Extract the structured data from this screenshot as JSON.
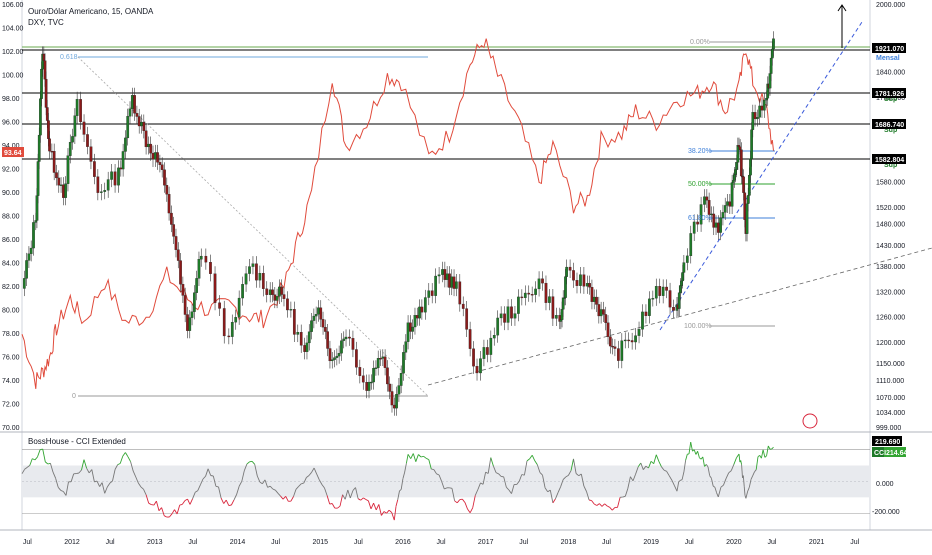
{
  "header": {
    "title": "Ouro/Dólar Americano, 15, OANDA",
    "subtitle": "DXY, TVC"
  },
  "colors": {
    "candle_up": "#26a69a",
    "candle_up_dark": "#1e7a28",
    "candle_down": "#8b1a1a",
    "dxy_line": "#e04b3c",
    "fib_blue": "#3d7fd9",
    "fib_green": "#2ca02c",
    "support": "#000000",
    "trend_dashed": "#3b5bdb",
    "cci_line": "#777777",
    "cci_green": "#33a532",
    "cci_red": "#d8263c",
    "cci_band": "#e8eaee"
  },
  "left_axis": {
    "ticks": [
      "106.00",
      "104.00",
      "102.00",
      "100.00",
      "98.00",
      "96.00",
      "94.00",
      "92.00",
      "90.00",
      "88.00",
      "86.00",
      "84.00",
      "82.00",
      "80.00",
      "78.00",
      "76.00",
      "74.00",
      "72.00",
      "70.00"
    ],
    "current_value": "93.64"
  },
  "right_axis": {
    "ticks": [
      "2000.000",
      "1840.000",
      "1780.000",
      "1720.000",
      "1640.000",
      "1580.000",
      "1520.000",
      "1480.000",
      "1430.000",
      "1380.000",
      "1320.000",
      "1260.000",
      "1200.000",
      "1150.000",
      "1110.000",
      "1070.000",
      "1034.000",
      "999.000"
    ]
  },
  "price_labels": [
    {
      "text": "1921.070",
      "kind": "current"
    },
    {
      "text": "1781.926",
      "kind": "support"
    },
    {
      "text": "1686.740",
      "kind": "support"
    },
    {
      "text": "1582.804",
      "kind": "support"
    }
  ],
  "level_labels": [
    "Mensal",
    "Sup",
    "Sup",
    "Sup"
  ],
  "fib_labels": [
    "0.00%",
    "38.20%",
    "50.00%",
    "61.80%",
    "100.00%",
    "0.618",
    "0"
  ],
  "time_axis": {
    "labels": [
      "Jul",
      "2012",
      "Jul",
      "2013",
      "Jul",
      "2014",
      "Jul",
      "2015",
      "Jul",
      "2016",
      "Jul",
      "2017",
      "Jul",
      "2018",
      "Jul",
      "2019",
      "Jul",
      "2020",
      "Jul",
      "2021",
      "Jul"
    ]
  },
  "cci": {
    "title": "BossHouse - CCI Extended",
    "ticks": [
      "219.690",
      "0.000",
      "-200.000"
    ],
    "label_value": "214.641",
    "label_name": "CCI"
  },
  "chart_data": [
    {
      "type": "candlestick",
      "title": "Ouro/Dólar Americano, 15, OANDA",
      "y_axis": "right",
      "ylim": [
        999,
        2000
      ],
      "x_range": [
        "2011-06",
        "2021-09"
      ],
      "series": [
        {
          "name": "XAUUSD",
          "points": [
            [
              "2011-06",
              1320
            ],
            [
              "2011-08",
              1500
            ],
            [
              "2011-09",
              1900
            ],
            [
              "2011-10",
              1650
            ],
            [
              "2011-12",
              1560
            ],
            [
              "2012-02",
              1760
            ],
            [
              "2012-05",
              1560
            ],
            [
              "2012-08",
              1600
            ],
            [
              "2012-10",
              1780
            ],
            [
              "2012-12",
              1680
            ],
            [
              "2013-02",
              1620
            ],
            [
              "2013-04",
              1460
            ],
            [
              "2013-06",
              1220
            ],
            [
              "2013-08",
              1420
            ],
            [
              "2013-12",
              1200
            ],
            [
              "2014-03",
              1390
            ],
            [
              "2014-06",
              1320
            ],
            [
              "2014-08",
              1310
            ],
            [
              "2014-11",
              1170
            ],
            [
              "2015-01",
              1300
            ],
            [
              "2015-03",
              1150
            ],
            [
              "2015-05",
              1230
            ],
            [
              "2015-08",
              1090
            ],
            [
              "2015-10",
              1180
            ],
            [
              "2015-12",
              1050
            ],
            [
              "2016-02",
              1240
            ],
            [
              "2016-04",
              1280
            ],
            [
              "2016-07",
              1370
            ],
            [
              "2016-09",
              1330
            ],
            [
              "2016-12",
              1130
            ],
            [
              "2017-03",
              1250
            ],
            [
              "2017-06",
              1290
            ],
            [
              "2017-09",
              1350
            ],
            [
              "2017-12",
              1240
            ],
            [
              "2018-01",
              1360
            ],
            [
              "2018-04",
              1340
            ],
            [
              "2018-06",
              1270
            ],
            [
              "2018-08",
              1170
            ],
            [
              "2018-11",
              1220
            ],
            [
              "2019-02",
              1330
            ],
            [
              "2019-05",
              1280
            ],
            [
              "2019-06",
              1400
            ],
            [
              "2019-09",
              1550
            ],
            [
              "2019-11",
              1460
            ],
            [
              "2020-01",
              1560
            ],
            [
              "2020-02",
              1680
            ],
            [
              "2020-03",
              1470
            ],
            [
              "2020-04",
              1740
            ],
            [
              "2020-06",
              1770
            ],
            [
              "2020-07",
              1920
            ]
          ]
        }
      ]
    },
    {
      "type": "line",
      "title": "DXY, TVC",
      "y_axis": "left",
      "ylim": [
        70,
        106
      ],
      "series": [
        {
          "name": "DXY",
          "points": [
            [
              "2011-06",
              78
            ],
            [
              "2011-08",
              74
            ],
            [
              "2011-09",
              74.8
            ],
            [
              "2011-10",
              76
            ],
            [
              "2011-11",
              78.5
            ],
            [
              "2012-01",
              81
            ],
            [
              "2012-03",
              79
            ],
            [
              "2012-06",
              82.5
            ],
            [
              "2012-09",
              79
            ],
            [
              "2012-12",
              79.5
            ],
            [
              "2013-03",
              83
            ],
            [
              "2013-06",
              81
            ],
            [
              "2013-09",
              80
            ],
            [
              "2013-12",
              80.5
            ],
            [
              "2014-03",
              79.5
            ],
            [
              "2014-05",
              79.3
            ],
            [
              "2014-08",
              82
            ],
            [
              "2014-10",
              86
            ],
            [
              "2014-12",
              90
            ],
            [
              "2015-03",
              100
            ],
            [
              "2015-05",
              94
            ],
            [
              "2015-08",
              96
            ],
            [
              "2015-11",
              100
            ],
            [
              "2016-01",
              99.5
            ],
            [
              "2016-05",
              93
            ],
            [
              "2016-08",
              95
            ],
            [
              "2016-11",
              101
            ],
            [
              "2017-01",
              103
            ],
            [
              "2017-03",
              100
            ],
            [
              "2017-06",
              96
            ],
            [
              "2017-09",
              91
            ],
            [
              "2017-11",
              94
            ],
            [
              "2018-02",
              89
            ],
            [
              "2018-04",
              89.5
            ],
            [
              "2018-06",
              94.5
            ],
            [
              "2018-09",
              95
            ],
            [
              "2018-11",
              97
            ],
            [
              "2019-02",
              96
            ],
            [
              "2019-05",
              98
            ],
            [
              "2019-08",
              98.5
            ],
            [
              "2019-10",
              99.5
            ],
            [
              "2019-12",
              97
            ],
            [
              "2020-02",
              99
            ],
            [
              "2020-03",
              102.5
            ],
            [
              "2020-04",
              99.5
            ],
            [
              "2020-06",
              97
            ],
            [
              "2020-07",
              93.6
            ]
          ]
        }
      ]
    },
    {
      "type": "line",
      "title": "BossHouse - CCI Extended",
      "ylim": [
        -280,
        260
      ],
      "series": [
        {
          "name": "CCI",
          "points": [
            [
              "2011-06",
              80
            ],
            [
              "2011-09",
              180
            ],
            [
              "2011-12",
              -90
            ],
            [
              "2012-03",
              120
            ],
            [
              "2012-06",
              -60
            ],
            [
              "2012-09",
              160
            ],
            [
              "2012-12",
              -100
            ],
            [
              "2013-03",
              -200
            ],
            [
              "2013-06",
              -140
            ],
            [
              "2013-09",
              90
            ],
            [
              "2013-12",
              -170
            ],
            [
              "2014-03",
              120
            ],
            [
              "2014-06",
              -60
            ],
            [
              "2014-09",
              -120
            ],
            [
              "2014-12",
              90
            ],
            [
              "2015-03",
              -160
            ],
            [
              "2015-06",
              -60
            ],
            [
              "2015-09",
              -150
            ],
            [
              "2015-12",
              -230
            ],
            [
              "2016-02",
              180
            ],
            [
              "2016-05",
              110
            ],
            [
              "2016-08",
              -60
            ],
            [
              "2016-11",
              -180
            ],
            [
              "2017-02",
              120
            ],
            [
              "2017-05",
              -80
            ],
            [
              "2017-08",
              160
            ],
            [
              "2017-11",
              -110
            ],
            [
              "2018-02",
              110
            ],
            [
              "2018-05",
              -150
            ],
            [
              "2018-08",
              -190
            ],
            [
              "2018-11",
              60
            ],
            [
              "2019-02",
              150
            ],
            [
              "2019-05",
              -60
            ],
            [
              "2019-07",
              215
            ],
            [
              "2019-09",
              110
            ],
            [
              "2019-11",
              -80
            ],
            [
              "2020-02",
              190
            ],
            [
              "2020-03",
              -110
            ],
            [
              "2020-05",
              160
            ],
            [
              "2020-07",
              214.6
            ]
          ]
        }
      ]
    }
  ]
}
